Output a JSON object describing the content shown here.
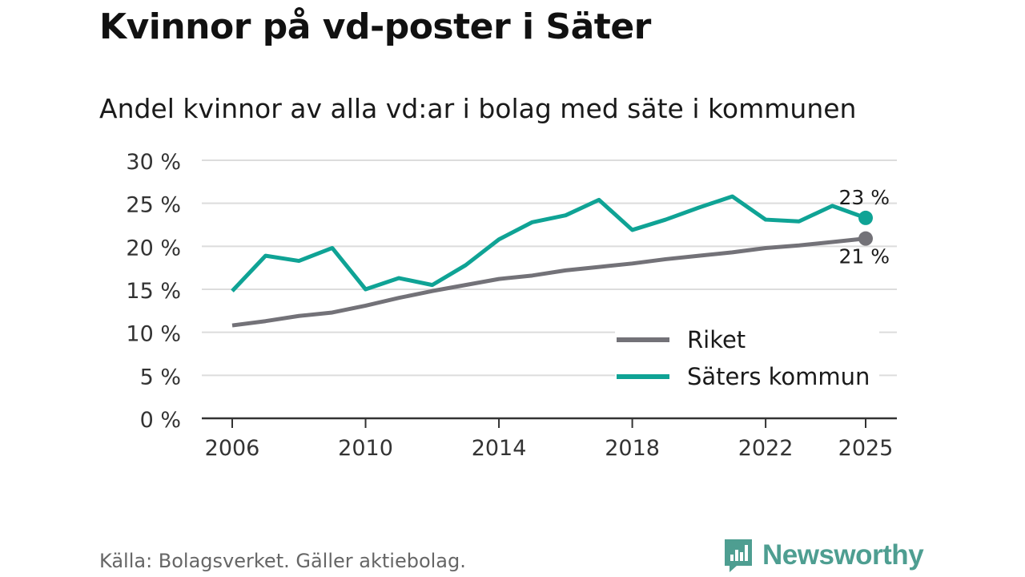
{
  "title": "Kvinnor på vd-poster i Säter",
  "subtitle": "Andel kvinnor av alla vd:ar i bolag med säte i kommunen",
  "source": "Källa: Bolagsverket. Gäller aktiebolag.",
  "brand": {
    "name": "Newsworthy",
    "color": "#4e9e91",
    "icon": "newsworthy-logo-icon"
  },
  "chart_data": {
    "type": "line",
    "title": "Kvinnor på vd-poster i Säter",
    "subtitle": "Andel kvinnor av alla vd:ar i bolag med säte i kommunen",
    "xlabel": "",
    "ylabel": "",
    "xlim": [
      2005,
      2026
    ],
    "ylim": [
      0,
      30
    ],
    "x_ticks": [
      2006,
      2010,
      2014,
      2018,
      2022,
      2025
    ],
    "x_tick_labels": [
      "2006",
      "2010",
      "2014",
      "2018",
      "2022",
      "2025"
    ],
    "y_ticks": [
      0,
      5,
      10,
      15,
      20,
      25,
      30
    ],
    "y_tick_labels": [
      "0 %",
      "5 %",
      "10 %",
      "15 %",
      "20 %",
      "25 %",
      "30 %"
    ],
    "grid": true,
    "legend_position": "bottom-right",
    "x": [
      2006,
      2007,
      2008,
      2009,
      2010,
      2011,
      2012,
      2013,
      2014,
      2015,
      2016,
      2017,
      2018,
      2019,
      2020,
      2021,
      2022,
      2023,
      2024,
      2025
    ],
    "series": [
      {
        "name": "Riket",
        "color": "#737278",
        "values": [
          10.8,
          11.3,
          11.9,
          12.3,
          13.1,
          14.0,
          14.8,
          15.5,
          16.2,
          16.6,
          17.2,
          17.6,
          18.0,
          18.5,
          18.9,
          19.3,
          19.8,
          20.1,
          20.5,
          20.9
        ],
        "end_label": "21 %"
      },
      {
        "name": "Säters kommun",
        "color": "#0fa395",
        "values": [
          14.8,
          18.9,
          18.3,
          19.8,
          15.0,
          16.3,
          15.5,
          17.8,
          20.8,
          22.8,
          23.6,
          25.4,
          21.9,
          23.1,
          24.5,
          25.8,
          23.1,
          22.9,
          24.7,
          23.3
        ],
        "end_label": "23 %"
      }
    ]
  }
}
